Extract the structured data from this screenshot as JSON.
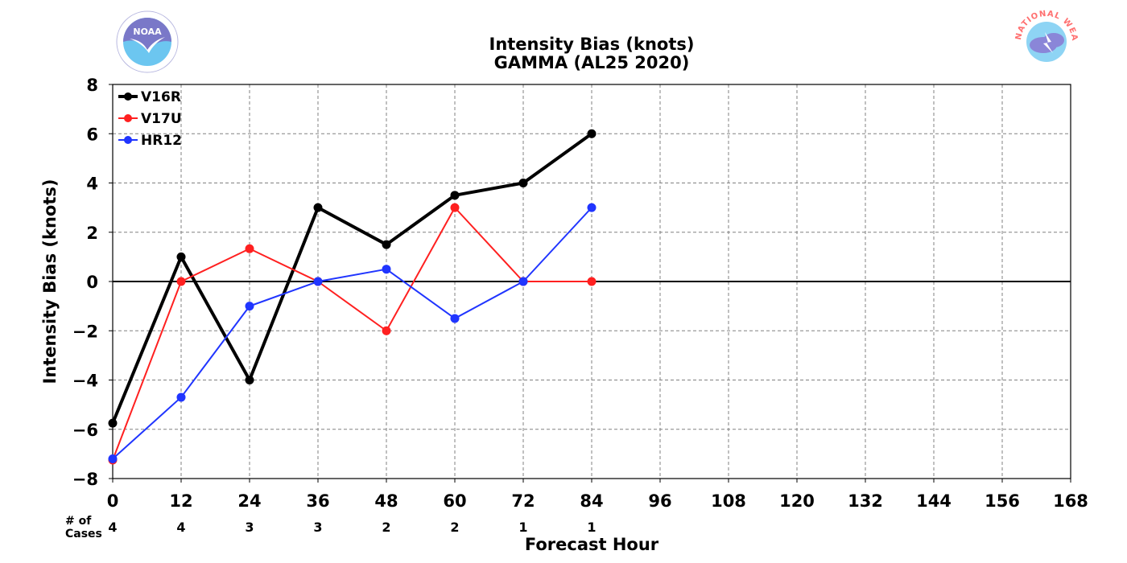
{
  "chart_data": {
    "type": "line",
    "title": "Intensity Bias (knots)",
    "subtitle": "GAMMA (AL25 2020)",
    "xlabel": "Forecast Hour",
    "ylabel": "Intensity Bias (knots)",
    "xlim": [
      0,
      168
    ],
    "ylim": [
      -8,
      8
    ],
    "x_ticks": [
      0,
      12,
      24,
      36,
      48,
      60,
      72,
      84,
      96,
      108,
      120,
      132,
      144,
      156,
      168
    ],
    "x_tick_labels": [
      "0",
      "12",
      "24",
      "36",
      "48",
      "60",
      "72",
      "84",
      "96",
      "108",
      "120",
      "132",
      "144",
      "156",
      "168"
    ],
    "y_ticks": [
      -8,
      -6,
      -4,
      -2,
      0,
      2,
      4,
      6,
      8
    ],
    "y_tick_labels": [
      "−8",
      "−6",
      "−4",
      "−2",
      "0",
      "2",
      "4",
      "6",
      "8"
    ],
    "grid": true,
    "zero_line": true,
    "legend_position": "top-left",
    "x": [
      0,
      12,
      24,
      36,
      48,
      60,
      72,
      84
    ],
    "series": [
      {
        "name": "V16R",
        "color": "#000000",
        "width": 4,
        "values": [
          -5.75,
          1,
          -4,
          3,
          1.5,
          3.5,
          4,
          6
        ]
      },
      {
        "name": "V17U",
        "color": "#ff2020",
        "width": 2,
        "values": [
          -7.25,
          0,
          1.33,
          0,
          -2,
          3,
          0,
          0
        ]
      },
      {
        "name": "HR12",
        "color": "#2035ff",
        "width": 2,
        "values": [
          -7.2,
          -4.7,
          -1,
          0,
          0.5,
          -1.5,
          0,
          3
        ]
      }
    ],
    "cases": {
      "label_line1": "# of",
      "label_line2": "Cases",
      "x": [
        0,
        12,
        24,
        36,
        48,
        60,
        72,
        84
      ],
      "values": [
        "4",
        "4",
        "3",
        "3",
        "2",
        "2",
        "1",
        "1"
      ]
    }
  },
  "logos": {
    "left": {
      "name": "NOAA",
      "text": "NOAA",
      "colors": {
        "dark": "#7a78c8",
        "light": "#6cc6f0"
      }
    },
    "right": {
      "name": "National Weather Service",
      "ring_text": "NATIONAL WEATHER SERVICE",
      "colors": {
        "ring": "#ff7070",
        "cloud": "#8a86d8",
        "sky": "#8ed4f4"
      }
    }
  }
}
